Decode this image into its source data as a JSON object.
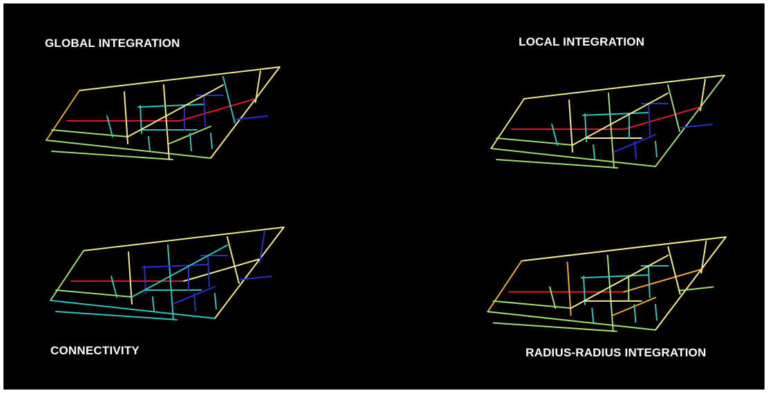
{
  "panels": [
    {
      "id": "global",
      "title": "GLOBAL INTEGRATION"
    },
    {
      "id": "local",
      "title": "LOCAL INTEGRATION"
    },
    {
      "id": "connectivity",
      "title": "CONNECTIVITY"
    },
    {
      "id": "radius",
      "title": "RADIUS-RADIUS INTEGRATION"
    }
  ],
  "colors": {
    "background": "#000000",
    "frame": "#ffffff",
    "title": "#ffffff",
    "scale_high": "#e0182e",
    "scale_upper": "#f2a43a",
    "scale_mid": "#f4ec8a",
    "scale_midlow": "#9fe070",
    "scale_low": "#2fc6c0",
    "scale_lowest": "#2a2fd0"
  }
}
